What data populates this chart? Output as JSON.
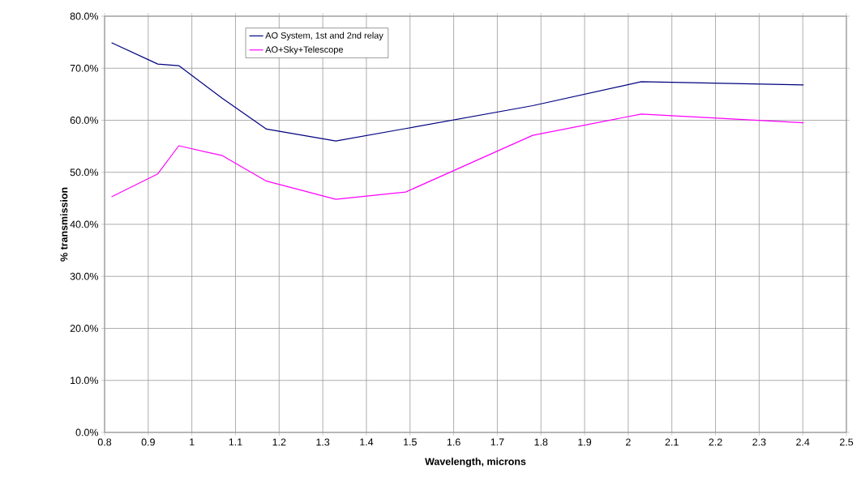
{
  "chart_data": {
    "type": "line",
    "xlabel": "Wavelength, microns",
    "ylabel": "% transmission",
    "xlim": [
      0.8,
      2.5
    ],
    "xticks": [
      0.8,
      0.9,
      1,
      1.1,
      1.2,
      1.3,
      1.4,
      1.5,
      1.6,
      1.7,
      1.8,
      1.9,
      2,
      2.1,
      2.2,
      2.3,
      2.4,
      2.5
    ],
    "ylim": [
      0,
      80
    ],
    "yticks": [
      {
        "value": 0,
        "label": "0.0%"
      },
      {
        "value": 10,
        "label": "10.0%"
      },
      {
        "value": 20,
        "label": "20.0%"
      },
      {
        "value": 30,
        "label": "30.0%"
      },
      {
        "value": 40,
        "label": "40.0%"
      },
      {
        "value": 50,
        "label": "50.0%"
      },
      {
        "value": 60,
        "label": "60.0%"
      },
      {
        "value": 70,
        "label": "70.0%"
      },
      {
        "value": 80,
        "label": "80.0%"
      }
    ],
    "x": [
      0.816,
      0.922,
      0.97,
      1.07,
      1.171,
      1.33,
      1.49,
      1.781,
      2.03,
      2.402
    ],
    "grid": true,
    "legend": "top",
    "marker": "none",
    "line_style": "solid",
    "series": [
      {
        "name": "AO System, 1st and 2nd relay",
        "color": "#000080",
        "values": [
          74.9,
          70.8,
          70.5,
          64.2,
          58.3,
          56.0,
          58.4,
          62.8,
          67.4,
          66.8
        ]
      },
      {
        "name": "AO+Sky+Telescope",
        "color": "#ff00ff",
        "values": [
          45.3,
          49.7,
          55.1,
          53.2,
          48.3,
          44.8,
          46.2,
          57.1,
          61.2,
          59.5
        ]
      }
    ]
  }
}
